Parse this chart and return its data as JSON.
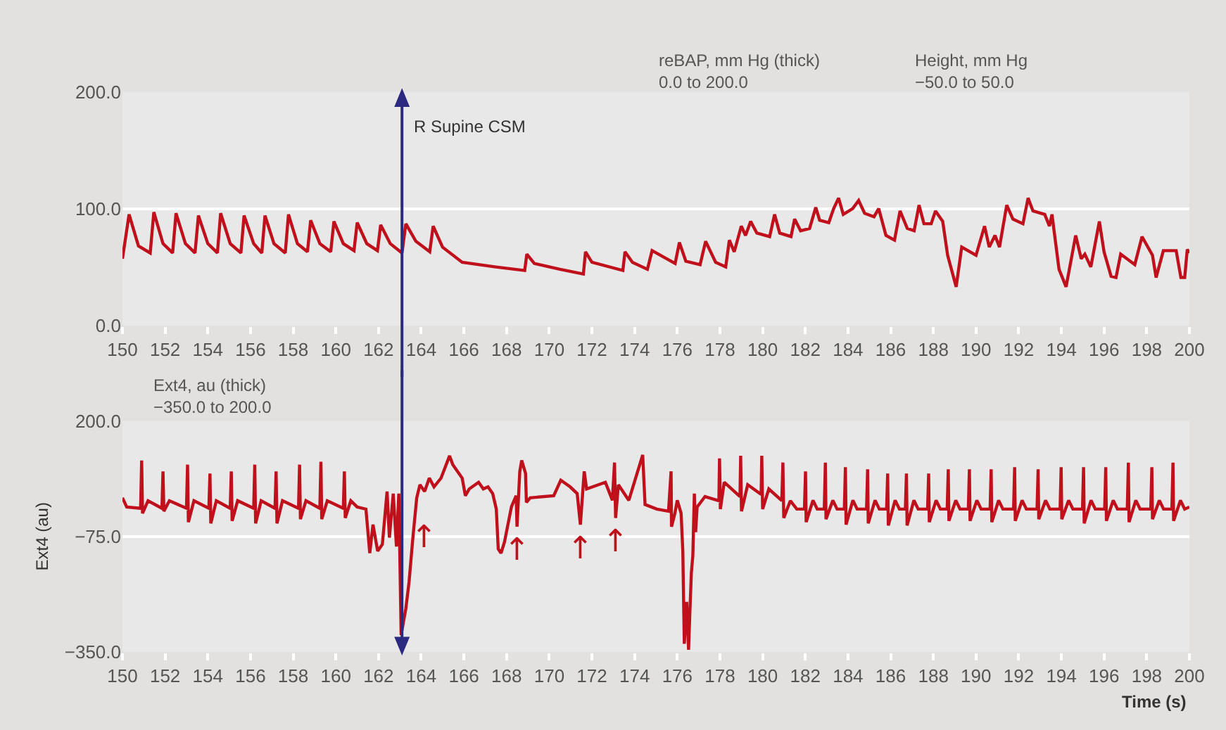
{
  "chart_data": [
    {
      "type": "line",
      "xlim": [
        150,
        200
      ],
      "xticks": [
        150,
        152,
        154,
        156,
        158,
        160,
        162,
        164,
        166,
        168,
        170,
        172,
        174,
        176,
        178,
        180,
        182,
        184,
        186,
        188,
        190,
        192,
        194,
        196,
        198,
        200
      ],
      "ylim": [
        0,
        200
      ],
      "yticks": [
        {
          "value": 0,
          "label": "0.0"
        },
        {
          "value": 100,
          "label": "100.0"
        },
        {
          "value": 200,
          "label": "200.0"
        }
      ],
      "grid": "y",
      "marker": "none",
      "line_style": "solid",
      "annotations": [
        "reBAP, mm Hg (thick)\n0.0 to 200.0",
        "Height, mm Hg\n−50.0 to 50.0"
      ],
      "ref_lines": [
        {
          "axis": "x",
          "value": 163.1,
          "label": "R Supine CSM",
          "color": "#2b2a80"
        }
      ],
      "series": [
        {
          "color": "#c0101c",
          "x": [
            150.0,
            150.31,
            150.75,
            151.3,
            151.47,
            151.9,
            152.35,
            152.51,
            152.95,
            153.4,
            153.56,
            154.0,
            154.45,
            154.6,
            155.05,
            155.55,
            155.7,
            156.15,
            156.53,
            156.68,
            157.1,
            157.63,
            157.78,
            158.2,
            158.67,
            158.82,
            159.25,
            159.76,
            159.91,
            160.35,
            160.85,
            161.0,
            161.45,
            161.95,
            162.1,
            162.55,
            163.1,
            163.28,
            163.75,
            164.4,
            164.56,
            165.0,
            165.92,
            167.5,
            168.85,
            168.95,
            169.3,
            170.5,
            171.6,
            171.7,
            172.0,
            173.45,
            173.55,
            173.9,
            174.6,
            174.82,
            175.9,
            176.1,
            176.4,
            177.07,
            177.33,
            177.8,
            178.27,
            178.44,
            178.67,
            179.0,
            179.2,
            179.44,
            179.73,
            180.33,
            180.56,
            180.8,
            181.33,
            181.5,
            181.78,
            182.2,
            182.49,
            182.67,
            183.1,
            183.33,
            183.56,
            183.78,
            184.22,
            184.5,
            184.78,
            185.22,
            185.44,
            185.78,
            186.18,
            186.44,
            186.78,
            187.1,
            187.33,
            187.56,
            187.9,
            188.1,
            188.44,
            188.67,
            189.07,
            189.33,
            190.0,
            190.4,
            190.62,
            190.89,
            191.1,
            191.44,
            191.73,
            192.2,
            192.44,
            192.67,
            193.22,
            193.44,
            193.56,
            193.89,
            194.22,
            194.67,
            194.93,
            195.1,
            195.38,
            195.78,
            196.0,
            196.33,
            196.56,
            196.78,
            197.44,
            197.78,
            198.27,
            198.44,
            198.78,
            199.38,
            199.6,
            199.78,
            199.9,
            200.0
          ],
          "values": [
            57,
            95,
            68,
            62,
            97,
            70,
            62,
            96,
            70,
            62,
            94,
            70,
            62,
            96,
            70,
            62,
            94,
            70,
            62,
            94,
            70,
            62,
            95,
            70,
            63,
            90,
            70,
            63,
            89,
            70,
            64,
            88,
            70,
            64,
            86,
            70,
            62,
            87,
            72,
            63,
            85,
            67,
            54,
            50,
            47,
            61,
            53,
            48,
            44,
            63,
            54,
            47,
            63,
            54,
            48,
            64,
            53,
            71,
            55,
            52,
            72,
            54,
            50,
            73,
            63,
            85,
            77,
            89,
            79,
            76,
            95,
            79,
            76,
            91,
            81,
            83,
            101,
            90,
            88,
            100,
            109,
            95,
            100,
            107,
            96,
            93,
            100,
            77,
            73,
            98,
            83,
            81,
            103,
            87,
            87,
            98,
            89,
            60,
            33,
            67,
            60,
            85,
            67,
            77,
            67,
            103,
            91,
            87,
            109,
            98,
            95,
            85,
            95,
            48,
            33,
            77,
            57,
            61,
            50,
            89,
            63,
            42,
            41,
            61,
            52,
            76,
            60,
            41,
            64,
            64,
            41,
            41,
            65,
            62
          ]
        }
      ]
    },
    {
      "type": "line",
      "xlim": [
        150,
        200
      ],
      "xticks": [
        150,
        152,
        154,
        156,
        158,
        160,
        162,
        164,
        166,
        168,
        170,
        172,
        174,
        176,
        178,
        180,
        182,
        184,
        186,
        188,
        190,
        192,
        194,
        196,
        198,
        200
      ],
      "ylim": [
        -350,
        200
      ],
      "yticks": [
        {
          "value": -350,
          "label": "−350.0"
        },
        {
          "value": -75,
          "label": "−75.0"
        },
        {
          "value": 200,
          "label": "200.0"
        }
      ],
      "grid": "y",
      "marker": "none",
      "line_style": "solid",
      "xlabel": "Time (s)",
      "ylabel": "Ext4 (au)",
      "annotations": [
        "Ext4, au (thick)\n−350.0 to 200.0",
        {
          "text": "↑",
          "x": 164.12,
          "y": -20
        },
        {
          "text": "↑",
          "x": 168.49,
          "y": -52
        },
        {
          "text": "↑",
          "x": 171.46,
          "y": -47
        },
        {
          "text": "↑",
          "x": 173.11,
          "y": -31
        }
      ],
      "ref_lines": [
        {
          "axis": "x",
          "value": 163.1,
          "color": "#2b2a80"
        }
      ],
      "series": [
        {
          "color": "#c0101c",
          "x": [
            150.0,
            150.2,
            150.85,
            150.9,
            150.94,
            151.2,
            151.85,
            151.9,
            151.94,
            152.2,
            153.0,
            153.05,
            153.09,
            153.35,
            154.05,
            154.1,
            154.14,
            154.4,
            155.05,
            155.1,
            155.14,
            155.4,
            156.15,
            156.2,
            156.24,
            156.5,
            157.15,
            157.2,
            157.24,
            157.5,
            158.25,
            158.3,
            158.34,
            158.6,
            159.25,
            159.3,
            159.34,
            159.6,
            160.35,
            160.4,
            160.44,
            160.7,
            161.0,
            161.41,
            161.59,
            161.74,
            161.96,
            162.18,
            162.4,
            162.51,
            162.69,
            162.84,
            162.95,
            163.06,
            163.28,
            163.43,
            163.61,
            163.79,
            163.94,
            164.16,
            164.38,
            164.6,
            164.93,
            165.33,
            165.48,
            165.92,
            166.07,
            166.25,
            166.69,
            166.91,
            167.13,
            167.35,
            167.52,
            167.61,
            167.74,
            167.9,
            168.23,
            168.45,
            168.49,
            168.62,
            168.71,
            168.89,
            168.93,
            169.11,
            170.21,
            170.54,
            170.98,
            171.31,
            171.46,
            171.64,
            171.75,
            172.63,
            172.96,
            173.06,
            173.11,
            173.24,
            173.73,
            174.38,
            174.49,
            175.04,
            175.59,
            175.71,
            175.73,
            175.89,
            176.0,
            176.18,
            176.26,
            176.33,
            176.44,
            176.53,
            176.59,
            176.66,
            176.73,
            176.8,
            176.86,
            176.93,
            177.3,
            177.95,
            177.98,
            178.02,
            178.2,
            178.94,
            178.97,
            179.01,
            179.3,
            179.93,
            179.96,
            180.0,
            180.29,
            180.9,
            180.95,
            180.99,
            181.3,
            181.6,
            181.96,
            182.01,
            182.04,
            182.36,
            182.56,
            182.89,
            182.94,
            182.97,
            183.29,
            183.49,
            183.83,
            183.88,
            183.91,
            184.23,
            184.43,
            184.87,
            184.92,
            184.95,
            185.27,
            185.47,
            185.81,
            185.86,
            185.89,
            186.21,
            186.41,
            186.69,
            186.74,
            186.77,
            187.09,
            187.29,
            187.73,
            187.78,
            187.81,
            188.13,
            188.33,
            188.65,
            188.7,
            188.73,
            189.05,
            189.25,
            189.64,
            189.69,
            189.72,
            190.04,
            190.24,
            190.66,
            190.71,
            190.74,
            191.06,
            191.26,
            191.76,
            191.81,
            191.84,
            192.16,
            192.36,
            192.86,
            192.91,
            192.94,
            193.26,
            193.46,
            193.94,
            193.99,
            194.02,
            194.34,
            194.54,
            194.99,
            195.04,
            195.07,
            195.39,
            195.59,
            196.03,
            196.08,
            196.11,
            196.43,
            196.63,
            197.09,
            197.14,
            197.17,
            197.49,
            197.69,
            198.19,
            198.24,
            198.27,
            198.59,
            198.79,
            199.18,
            199.23,
            199.26,
            199.58,
            199.78,
            200.0
          ],
          "values": [
            17,
            -5,
            -8,
            106,
            -20,
            10,
            -8,
            80,
            -15,
            10,
            -8,
            96,
            -41,
            10,
            -8,
            75,
            -44,
            10,
            -8,
            80,
            -38,
            10,
            -8,
            96,
            -44,
            10,
            -8,
            80,
            -44,
            10,
            -8,
            96,
            -34,
            10,
            -8,
            103,
            -34,
            10,
            -8,
            80,
            -31,
            10,
            -5,
            -10,
            -115,
            -47,
            -110,
            -94,
            32,
            -78,
            27,
            -99,
            27,
            -310,
            -247,
            -184,
            -78,
            17,
            48,
            32,
            64,
            43,
            64,
            117,
            96,
            64,
            22,
            38,
            54,
            38,
            43,
            27,
            -10,
            -105,
            -115,
            -89,
            -4,
            22,
            -52,
            80,
            106,
            75,
            6,
            17,
            22,
            59,
            43,
            27,
            -47,
            80,
            38,
            54,
            11,
            101,
            -31,
            48,
            11,
            119,
            1,
            -10,
            -15,
            80,
            -52,
            -20,
            11,
            -20,
            -110,
            -331,
            -231,
            -345,
            -257,
            -162,
            -120,
            27,
            -65,
            -5,
            20,
            10,
            111,
            -10,
            54,
            20,
            117,
            -15,
            48,
            25,
            117,
            -10,
            38,
            10,
            101,
            -31,
            10,
            -10,
            -10,
            80,
            -41,
            11,
            -10,
            -10,
            101,
            -34,
            11,
            -10,
            -10,
            90,
            -47,
            11,
            -10,
            -10,
            85,
            -44,
            11,
            -10,
            -10,
            75,
            -49,
            11,
            -10,
            -10,
            75,
            -49,
            11,
            -10,
            -10,
            75,
            -41,
            11,
            -10,
            -10,
            85,
            -38,
            11,
            -10,
            -10,
            85,
            -38,
            11,
            -10,
            -10,
            85,
            -41,
            11,
            -10,
            -10,
            90,
            -38,
            11,
            -10,
            -10,
            85,
            -34,
            11,
            -10,
            -10,
            90,
            -34,
            11,
            -10,
            -10,
            90,
            -44,
            11,
            -10,
            -10,
            90,
            -38,
            11,
            -10,
            -10,
            101,
            -41,
            11,
            -10,
            -10,
            90,
            -34,
            11,
            -10,
            -10,
            101,
            -38,
            11,
            -10,
            -5
          ]
        }
      ]
    }
  ]
}
